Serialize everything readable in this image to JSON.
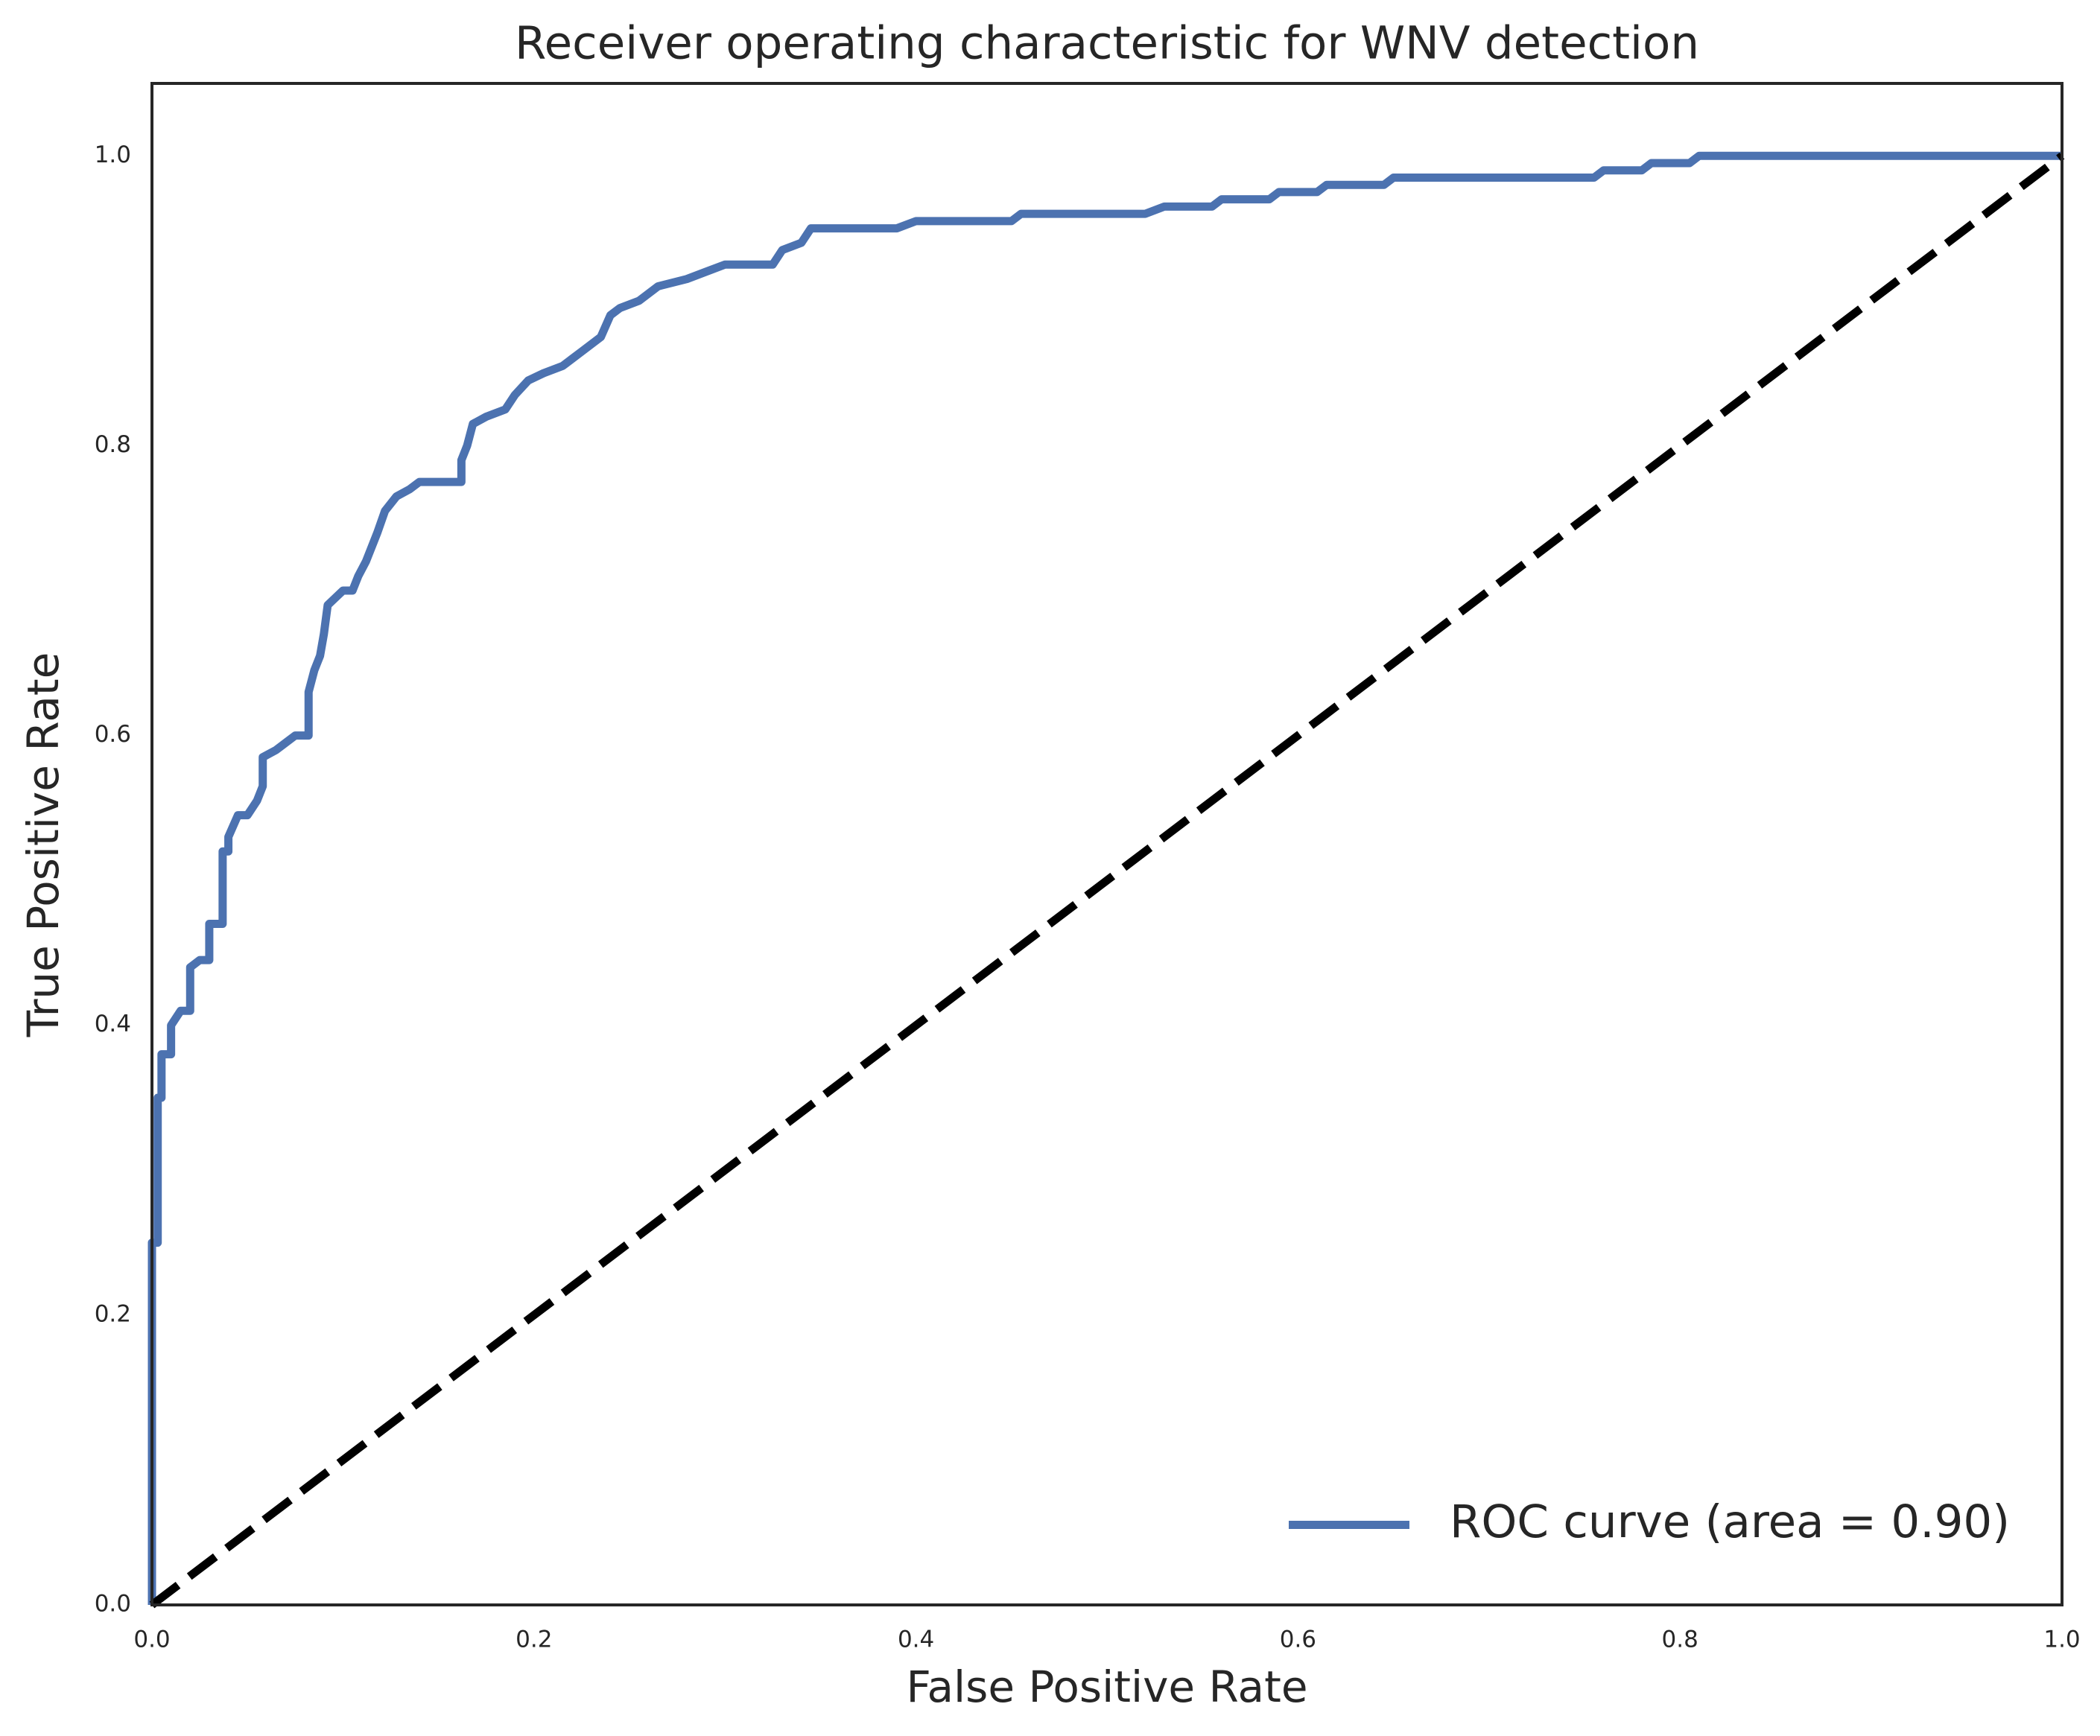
{
  "chart_data": {
    "type": "line",
    "title": "Receiver operating characteristic for WNV detection",
    "xlabel": "False Positive Rate",
    "ylabel": "True Positive Rate",
    "xlim": [
      0,
      1
    ],
    "ylim": [
      0,
      1.05
    ],
    "xticks": [
      {
        "value": 0,
        "label": "0.0"
      },
      {
        "value": 0.2,
        "label": "0.2"
      },
      {
        "value": 0.4,
        "label": "0.4"
      },
      {
        "value": 0.6,
        "label": "0.6"
      },
      {
        "value": 0.8,
        "label": "0.8"
      },
      {
        "value": 1,
        "label": "1.0"
      }
    ],
    "yticks": [
      {
        "value": 0,
        "label": "0.0"
      },
      {
        "value": 0.2,
        "label": "0.2"
      },
      {
        "value": 0.4,
        "label": "0.4"
      },
      {
        "value": 0.6,
        "label": "0.6"
      },
      {
        "value": 0.8,
        "label": "0.8"
      },
      {
        "value": 1,
        "label": "1.0"
      }
    ],
    "grid": false,
    "legend": "lower right",
    "series": [
      {
        "name": "ROC curve (area = 0.90)",
        "color": "#4c72b0",
        "dash": false,
        "x": [
          0,
          0,
          0.003,
          0.003,
          0.005,
          0.005,
          0.01,
          0.01,
          0.015,
          0.02,
          0.02,
          0.025,
          0.03,
          0.03,
          0.037,
          0.037,
          0.04,
          0.04,
          0.045,
          0.05,
          0.055,
          0.058,
          0.058,
          0.065,
          0.075,
          0.082,
          0.082,
          0.085,
          0.088,
          0.09,
          0.092,
          0.1,
          0.105,
          0.108,
          0.112,
          0.118,
          0.122,
          0.128,
          0.135,
          0.14,
          0.162,
          0.162,
          0.165,
          0.168,
          0.175,
          0.185,
          0.19,
          0.197,
          0.205,
          0.215,
          0.22,
          0.225,
          0.23,
          0.235,
          0.24,
          0.245,
          0.255,
          0.265,
          0.28,
          0.29,
          0.3,
          0.325,
          0.33,
          0.34,
          0.345,
          0.39,
          0.4,
          0.45,
          0.455,
          0.52,
          0.53,
          0.555,
          0.56,
          0.585,
          0.59,
          0.61,
          0.615,
          0.645,
          0.65,
          0.755,
          0.76,
          0.78,
          0.785,
          0.805,
          0.81,
          1
        ],
        "values": [
          0,
          0.25,
          0.25,
          0.35,
          0.35,
          0.38,
          0.38,
          0.4,
          0.41,
          0.41,
          0.44,
          0.445,
          0.445,
          0.47,
          0.47,
          0.52,
          0.52,
          0.53,
          0.545,
          0.545,
          0.555,
          0.565,
          0.585,
          0.59,
          0.6,
          0.6,
          0.63,
          0.645,
          0.655,
          0.67,
          0.69,
          0.7,
          0.7,
          0.71,
          0.72,
          0.74,
          0.755,
          0.765,
          0.77,
          0.775,
          0.775,
          0.79,
          0.8,
          0.815,
          0.82,
          0.825,
          0.835,
          0.845,
          0.85,
          0.855,
          0.86,
          0.865,
          0.87,
          0.875,
          0.89,
          0.895,
          0.9,
          0.91,
          0.915,
          0.92,
          0.925,
          0.925,
          0.935,
          0.94,
          0.95,
          0.95,
          0.955,
          0.955,
          0.96,
          0.96,
          0.965,
          0.965,
          0.97,
          0.97,
          0.975,
          0.975,
          0.98,
          0.98,
          0.985,
          0.985,
          0.99,
          0.99,
          0.995,
          0.995,
          1,
          1
        ]
      },
      {
        "color": "#000000",
        "dash": true,
        "x": [
          0,
          1
        ],
        "values": [
          0,
          1
        ]
      }
    ]
  }
}
